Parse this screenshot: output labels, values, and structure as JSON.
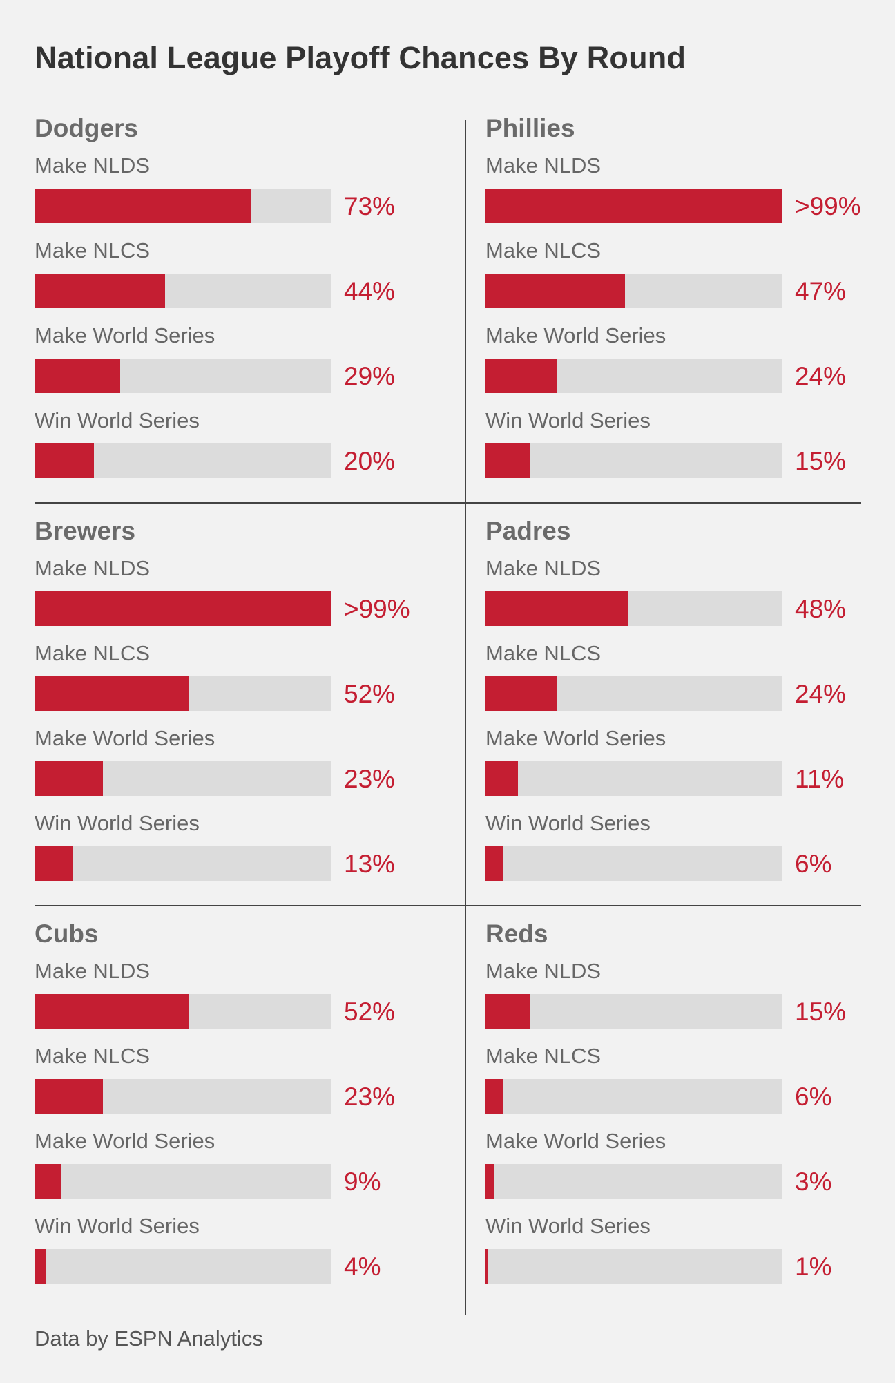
{
  "chart_data": {
    "type": "bar",
    "title": "National League Playoff Chances By Round",
    "categories": [
      "Make NLDS",
      "Make NLCS",
      "Make World Series",
      "Win World Series"
    ],
    "teams": [
      {
        "name": "Dodgers",
        "values": [
          73,
          44,
          29,
          20
        ],
        "labels": [
          "73%",
          "44%",
          "29%",
          "20%"
        ]
      },
      {
        "name": "Phillies",
        "values": [
          100,
          47,
          24,
          15
        ],
        "labels": [
          ">99%",
          "47%",
          "24%",
          "15%"
        ]
      },
      {
        "name": "Brewers",
        "values": [
          100,
          52,
          23,
          13
        ],
        "labels": [
          ">99%",
          "52%",
          "23%",
          "13%"
        ]
      },
      {
        "name": "Padres",
        "values": [
          48,
          24,
          11,
          6
        ],
        "labels": [
          "48%",
          "24%",
          "11%",
          "6%"
        ]
      },
      {
        "name": "Cubs",
        "values": [
          52,
          23,
          9,
          4
        ],
        "labels": [
          "52%",
          "23%",
          "9%",
          "4%"
        ]
      },
      {
        "name": "Reds",
        "values": [
          15,
          6,
          3,
          1
        ],
        "labels": [
          "15%",
          "6%",
          "3%",
          "1%"
        ]
      }
    ],
    "ylim": [
      0,
      100
    ],
    "bar_color": "#c41e32",
    "track_color": "#dcdcdc",
    "footer": "Data by ESPN Analytics"
  }
}
